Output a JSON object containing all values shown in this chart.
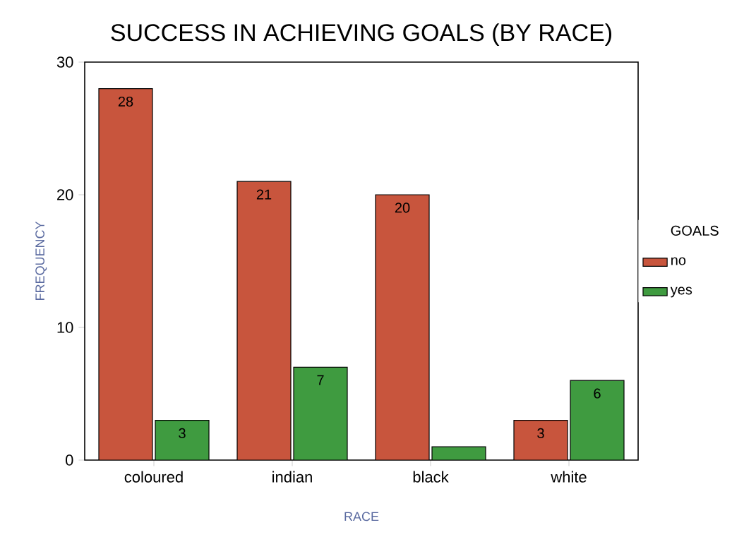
{
  "chart_data": {
    "type": "bar",
    "title": "SUCCESS IN ACHIEVING GOALS (BY RACE)",
    "xlabel": "RACE",
    "ylabel": "FREQUENCY",
    "legend_title": "GOALS",
    "categories": [
      "coloured",
      "indian",
      "black",
      "white"
    ],
    "series": [
      {
        "name": "no",
        "color": "#c8553d",
        "values": [
          28,
          21,
          20,
          3
        ],
        "value_labels": [
          "28",
          "21",
          "20",
          "3"
        ]
      },
      {
        "name": "yes",
        "color": "#3f9b40",
        "values": [
          3,
          7,
          1,
          6
        ],
        "value_labels": [
          "3",
          "7",
          null,
          "6"
        ]
      }
    ],
    "ylim": [
      0,
      30
    ],
    "yticks": [
      0,
      10,
      20,
      30
    ],
    "grid": false,
    "legend": "right"
  }
}
